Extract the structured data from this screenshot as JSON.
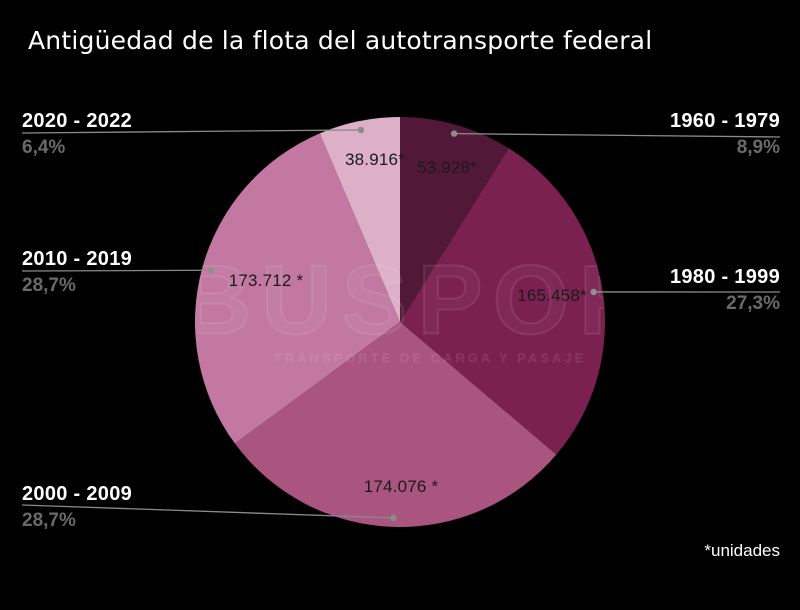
{
  "title": "Antigüedad de la flota del autotransporte federal",
  "footnote": "*unidades",
  "watermark": {
    "text": "BUSPORT",
    "subtext": "TRANSPORTE DE CARGA Y PASAJE"
  },
  "colors": {
    "background": "#000000",
    "title_text": "#ffffff",
    "percent_text": "#6a6a6a",
    "value_text": "#1b1b1b",
    "leader_line": "#8a8a8a",
    "leader_dot": "#8c8c8c"
  },
  "chart_data": {
    "type": "pie",
    "title": "Antigüedad de la flota del autotransporte federal",
    "unit_note": "*unidades",
    "start_angle_deg": 0,
    "direction": "clockwise",
    "labels_layout": "outside with leader lines and dots; unit values inside slices",
    "slices": [
      {
        "label": "1960 - 1979",
        "percent": 8.9,
        "percent_label": "8,9%",
        "value": 53928,
        "value_label": "53.928*",
        "color": "#521837"
      },
      {
        "label": "1980 - 1999",
        "percent": 27.3,
        "percent_label": "27,3%",
        "value": 165458,
        "value_label": "165.458*",
        "color": "#7b2150"
      },
      {
        "label": "2000 - 2009",
        "percent": 28.7,
        "percent_label": "28,7%",
        "value": 174076,
        "value_label": "174.076 *",
        "color": "#aa5480"
      },
      {
        "label": "2010 - 2019",
        "percent": 28.7,
        "percent_label": "28,7%",
        "value": 173712,
        "value_label": "173.712 *",
        "color": "#c278a1"
      },
      {
        "label": "2020 - 2022",
        "percent": 6.4,
        "percent_label": "6,4%",
        "value": 38916,
        "value_label": "38.916*",
        "color": "#ddb0c8"
      }
    ]
  }
}
